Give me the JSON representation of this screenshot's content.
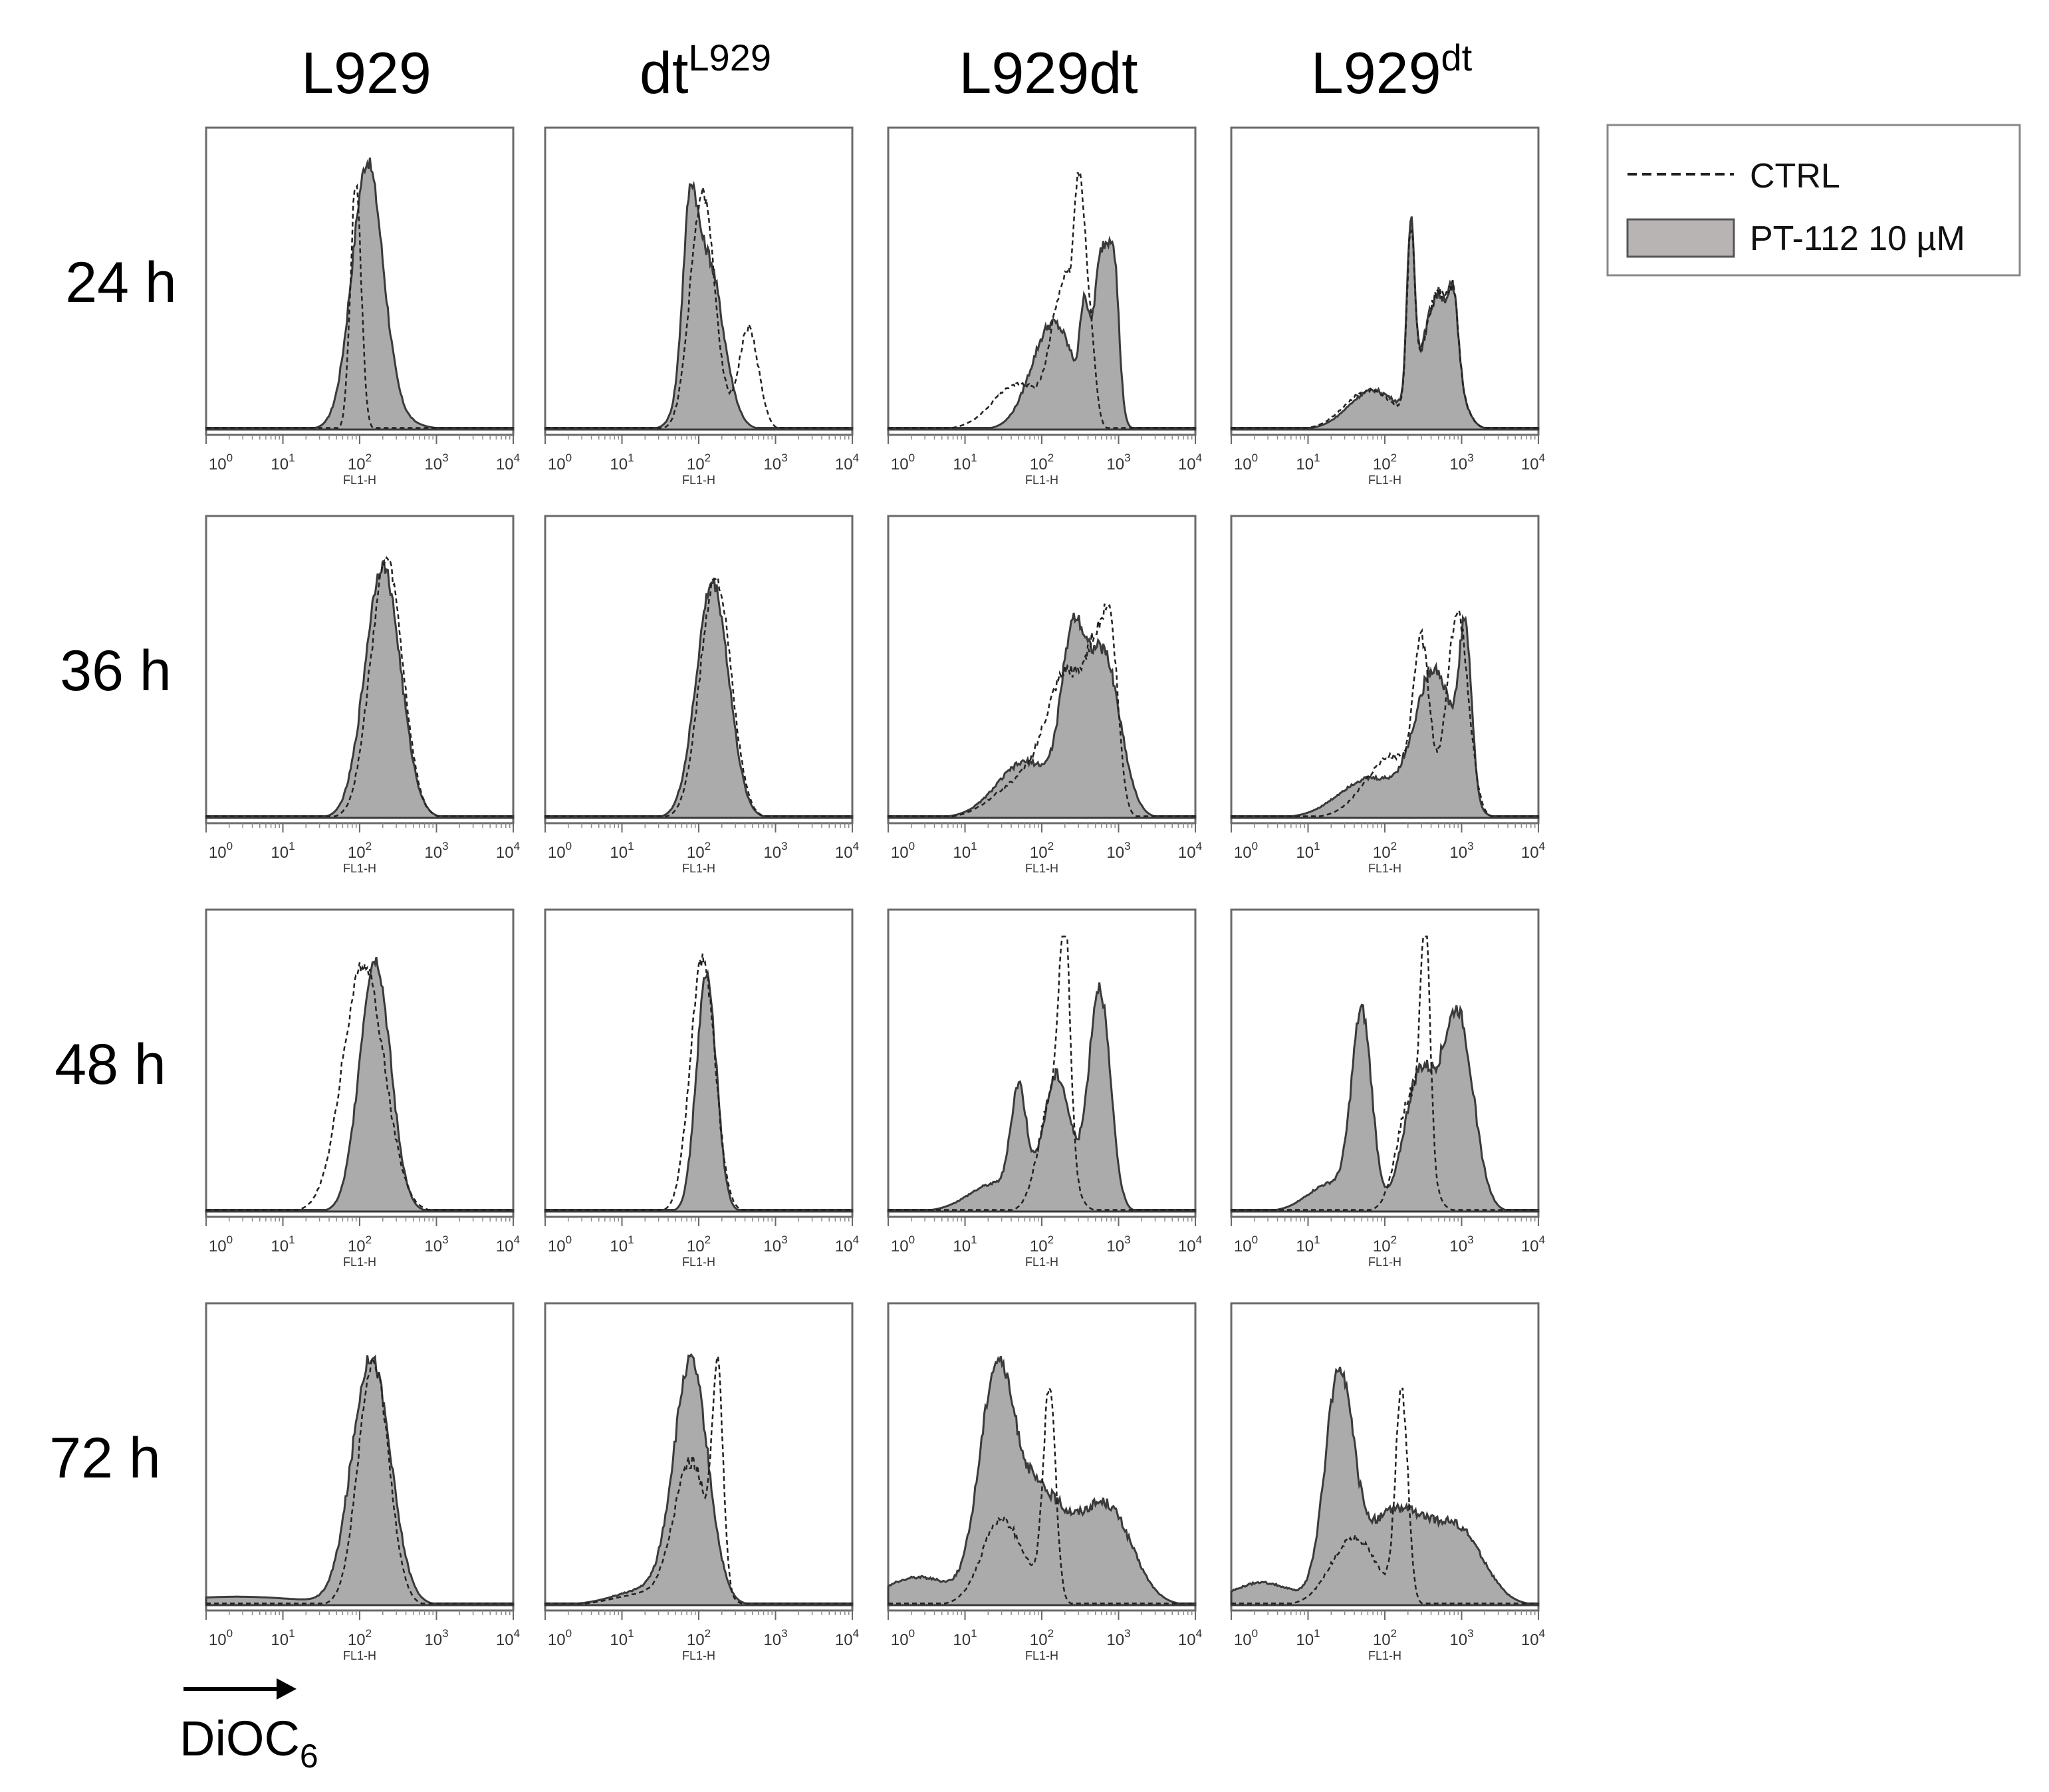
{
  "figure": {
    "columns": [
      {
        "base": "L929",
        "sup": ""
      },
      {
        "base": "dt",
        "sup": "L929"
      },
      {
        "base": "L929dt",
        "sup": ""
      },
      {
        "base": "L929",
        "sup": "dt"
      }
    ],
    "rows": [
      "24 h",
      "36 h",
      "48 h",
      "72 h"
    ],
    "axis_marker": {
      "base": "DiOC",
      "sub": "6"
    },
    "legend": {
      "ctrl_label": "CTRL",
      "treated_label": "PT-112 10 µM"
    },
    "xaxis_label": "FL1-H",
    "tick_labels": [
      {
        "base": "10",
        "exp": "0"
      },
      {
        "base": "10",
        "exp": "1"
      },
      {
        "base": "10",
        "exp": "2"
      },
      {
        "base": "10",
        "exp": "3"
      },
      {
        "base": "10",
        "exp": "4"
      }
    ]
  },
  "chart_data": {
    "type": "area",
    "title": "",
    "xlabel": "FL1-H",
    "ylabel": "",
    "xscale": "log",
    "xlim": [
      1,
      10000
    ],
    "ylim": [
      0,
      1
    ],
    "x_ticks": [
      1,
      10,
      100,
      1000,
      10000
    ],
    "series_names": [
      "CTRL",
      "PT-112 10 µM"
    ],
    "panels": [
      {
        "row": "24 h",
        "col": "L929",
        "ctrl": [
          [
            1.95,
            0.07,
            0.88
          ]
        ],
        "treated": [
          [
            2.25,
            0.34,
            0.06
          ],
          [
            2.1,
            0.2,
            0.9
          ]
        ]
      },
      {
        "row": "24 h",
        "col": "dt^L929",
        "ctrl": [
          [
            2.05,
            0.16,
            0.84
          ],
          [
            2.65,
            0.13,
            0.36
          ]
        ],
        "treated": [
          [
            2.1,
            0.21,
            0.62
          ],
          [
            1.88,
            0.09,
            0.5
          ]
        ]
      },
      {
        "row": "24 h",
        "col": "L929dt",
        "ctrl": [
          [
            2.3,
            0.16,
            0.5
          ],
          [
            2.48,
            0.06,
            0.52
          ],
          [
            1.7,
            0.34,
            0.16
          ],
          [
            2.6,
            0.08,
            0.4
          ]
        ],
        "treated": [
          [
            2.8,
            0.12,
            0.62
          ],
          [
            2.55,
            0.05,
            0.28
          ],
          [
            2.15,
            0.28,
            0.38
          ],
          [
            2.95,
            0.06,
            0.34
          ]
        ]
      },
      {
        "row": "24 h",
        "col": "L929^dt",
        "ctrl": [
          [
            2.34,
            0.05,
            0.6
          ],
          [
            2.7,
            0.2,
            0.48
          ],
          [
            2.9,
            0.06,
            0.2
          ],
          [
            1.8,
            0.32,
            0.14
          ]
        ],
        "treated": [
          [
            2.34,
            0.05,
            0.62
          ],
          [
            2.7,
            0.2,
            0.48
          ],
          [
            2.9,
            0.06,
            0.2
          ],
          [
            1.85,
            0.32,
            0.14
          ]
        ]
      },
      {
        "row": "36 h",
        "col": "L929",
        "ctrl": [
          [
            2.35,
            0.21,
            0.92
          ]
        ],
        "treated": [
          [
            2.3,
            0.23,
            0.9
          ]
        ]
      },
      {
        "row": "36 h",
        "col": "dt^L929",
        "ctrl": [
          [
            2.22,
            0.2,
            0.86
          ]
        ],
        "treated": [
          [
            2.18,
            0.21,
            0.84
          ]
        ]
      },
      {
        "row": "36 h",
        "col": "L929dt",
        "ctrl": [
          [
            2.9,
            0.1,
            0.56
          ],
          [
            2.35,
            0.28,
            0.5
          ],
          [
            2.7,
            0.12,
            0.36
          ],
          [
            1.7,
            0.35,
            0.12
          ]
        ],
        "treated": [
          [
            2.4,
            0.15,
            0.54
          ],
          [
            2.8,
            0.22,
            0.58
          ],
          [
            1.8,
            0.38,
            0.2
          ]
        ]
      },
      {
        "row": "36 h",
        "col": "L929^dt",
        "ctrl": [
          [
            2.48,
            0.1,
            0.52
          ],
          [
            2.95,
            0.14,
            0.72
          ],
          [
            2.1,
            0.35,
            0.22
          ]
        ],
        "treated": [
          [
            3.05,
            0.08,
            0.56
          ],
          [
            2.65,
            0.25,
            0.52
          ],
          [
            1.8,
            0.4,
            0.14
          ]
        ]
      },
      {
        "row": "48 h",
        "col": "L929",
        "ctrl": [
          [
            2.05,
            0.27,
            0.88
          ]
        ],
        "treated": [
          [
            2.2,
            0.2,
            0.9
          ]
        ]
      },
      {
        "row": "48 h",
        "col": "dt^L929",
        "ctrl": [
          [
            2.05,
            0.16,
            0.9
          ]
        ],
        "treated": [
          [
            2.1,
            0.13,
            0.84
          ]
        ]
      },
      {
        "row": "48 h",
        "col": "L929dt",
        "ctrl": [
          [
            2.3,
            0.07,
            0.78
          ],
          [
            2.15,
            0.18,
            0.42
          ]
        ],
        "treated": [
          [
            1.7,
            0.1,
            0.38
          ],
          [
            2.2,
            0.18,
            0.48
          ],
          [
            2.75,
            0.14,
            0.8
          ],
          [
            1.4,
            0.35,
            0.1
          ]
        ]
      },
      {
        "row": "48 h",
        "col": "L929^dt",
        "ctrl": [
          [
            2.53,
            0.06,
            0.82
          ],
          [
            2.35,
            0.18,
            0.42
          ]
        ],
        "treated": [
          [
            1.7,
            0.13,
            0.68
          ],
          [
            2.95,
            0.2,
            0.7
          ],
          [
            2.45,
            0.2,
            0.48
          ],
          [
            1.3,
            0.3,
            0.1
          ]
        ]
      },
      {
        "row": "72 h",
        "col": "L929",
        "ctrl": [
          [
            2.18,
            0.2,
            0.86
          ]
        ],
        "treated": [
          [
            2.15,
            0.25,
            0.88
          ],
          [
            0.4,
            0.9,
            0.03
          ]
        ]
      },
      {
        "row": "72 h",
        "col": "dt^L929",
        "ctrl": [
          [
            2.25,
            0.07,
            0.72
          ],
          [
            1.9,
            0.22,
            0.5
          ],
          [
            1.3,
            0.4,
            0.04
          ]
        ],
        "treated": [
          [
            1.9,
            0.22,
            0.84
          ],
          [
            1.4,
            0.45,
            0.06
          ]
        ]
      },
      {
        "row": "72 h",
        "col": "L929dt",
        "ctrl": [
          [
            2.1,
            0.08,
            0.74
          ],
          [
            1.55,
            0.3,
            0.22
          ],
          [
            1.4,
            0.2,
            0.1
          ]
        ],
        "treated": [
          [
            1.4,
            0.22,
            0.72
          ],
          [
            1.95,
            0.38,
            0.4
          ],
          [
            2.85,
            0.33,
            0.34
          ],
          [
            0.4,
            0.45,
            0.1
          ]
        ]
      },
      {
        "row": "72 h",
        "col": "L929^dt",
        "ctrl": [
          [
            2.22,
            0.08,
            0.74
          ],
          [
            1.6,
            0.3,
            0.24
          ]
        ],
        "treated": [
          [
            1.4,
            0.18,
            0.76
          ],
          [
            2.15,
            0.45,
            0.34
          ],
          [
            3.0,
            0.32,
            0.22
          ],
          [
            0.4,
            0.4,
            0.08
          ]
        ]
      }
    ],
    "component_format": "[log10(center), log-width, relative peak height]"
  }
}
